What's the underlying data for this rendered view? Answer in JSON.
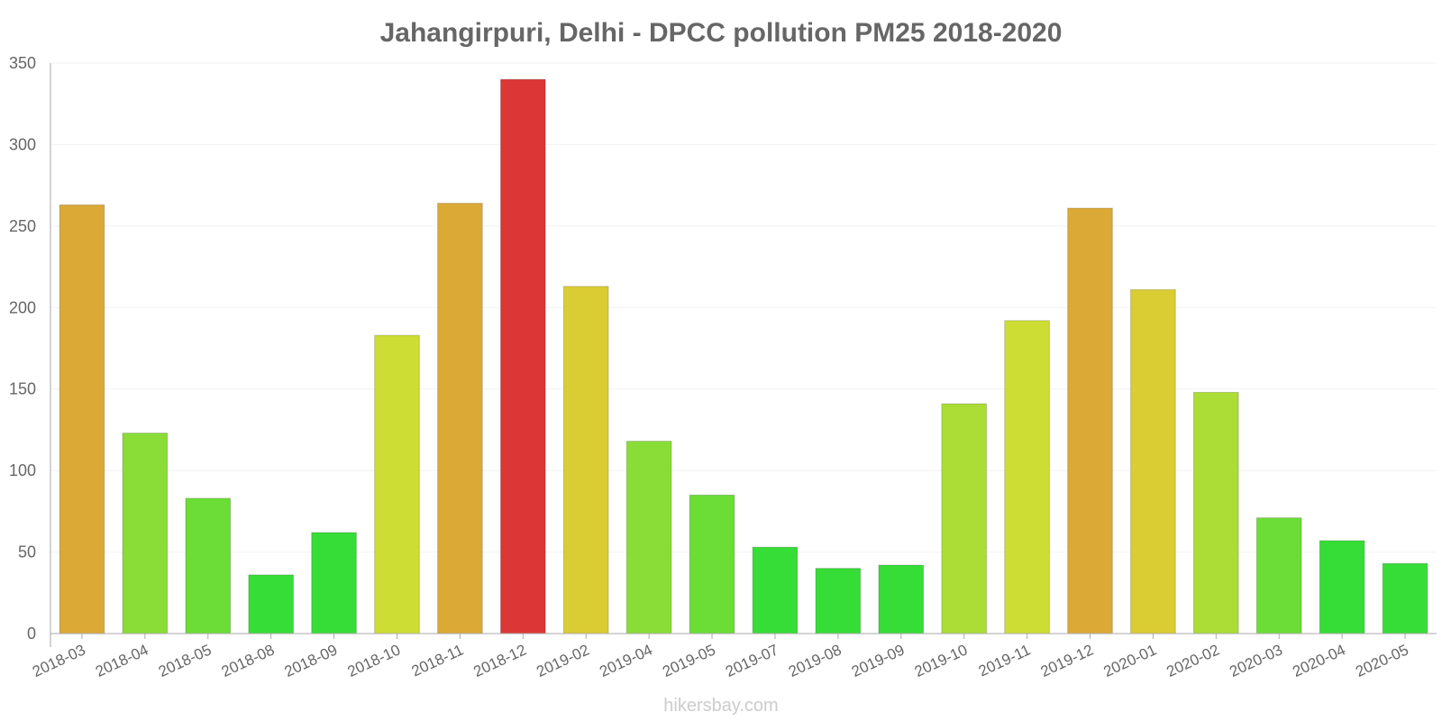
{
  "chart_data": {
    "type": "bar",
    "title": "Jahangirpuri, Delhi - DPCC pollution PM25 2018-2020",
    "xlabel": "",
    "ylabel": "",
    "ylim": [
      0,
      350
    ],
    "yticks": [
      0,
      50,
      100,
      150,
      200,
      250,
      300,
      350
    ],
    "grid": true,
    "categories": [
      "2018-03",
      "2018-04",
      "2018-05",
      "2018-08",
      "2018-09",
      "2018-10",
      "2018-11",
      "2018-12",
      "2019-02",
      "2019-04",
      "2019-05",
      "2019-07",
      "2019-08",
      "2019-09",
      "2019-10",
      "2019-11",
      "2019-12",
      "2020-01",
      "2020-02",
      "2020-03",
      "2020-04",
      "2020-05"
    ],
    "values": [
      263,
      123,
      83,
      36,
      62,
      183,
      264,
      340,
      213,
      118,
      85,
      53,
      40,
      42,
      141,
      192,
      261,
      211,
      148,
      71,
      57,
      43
    ],
    "colors": [
      "#dba936",
      "#89dd36",
      "#6bdd36",
      "#36dd36",
      "#36dd36",
      "#cddd33",
      "#dba936",
      "#dd3636",
      "#dacc33",
      "#89dd36",
      "#6bdd36",
      "#36dd36",
      "#36dd36",
      "#36dd36",
      "#acdd36",
      "#cddd33",
      "#dba936",
      "#dacc33",
      "#acdd36",
      "#6bdd36",
      "#36dd36",
      "#36dd36"
    ]
  },
  "footer": {
    "watermark": "hikersbay.com"
  }
}
